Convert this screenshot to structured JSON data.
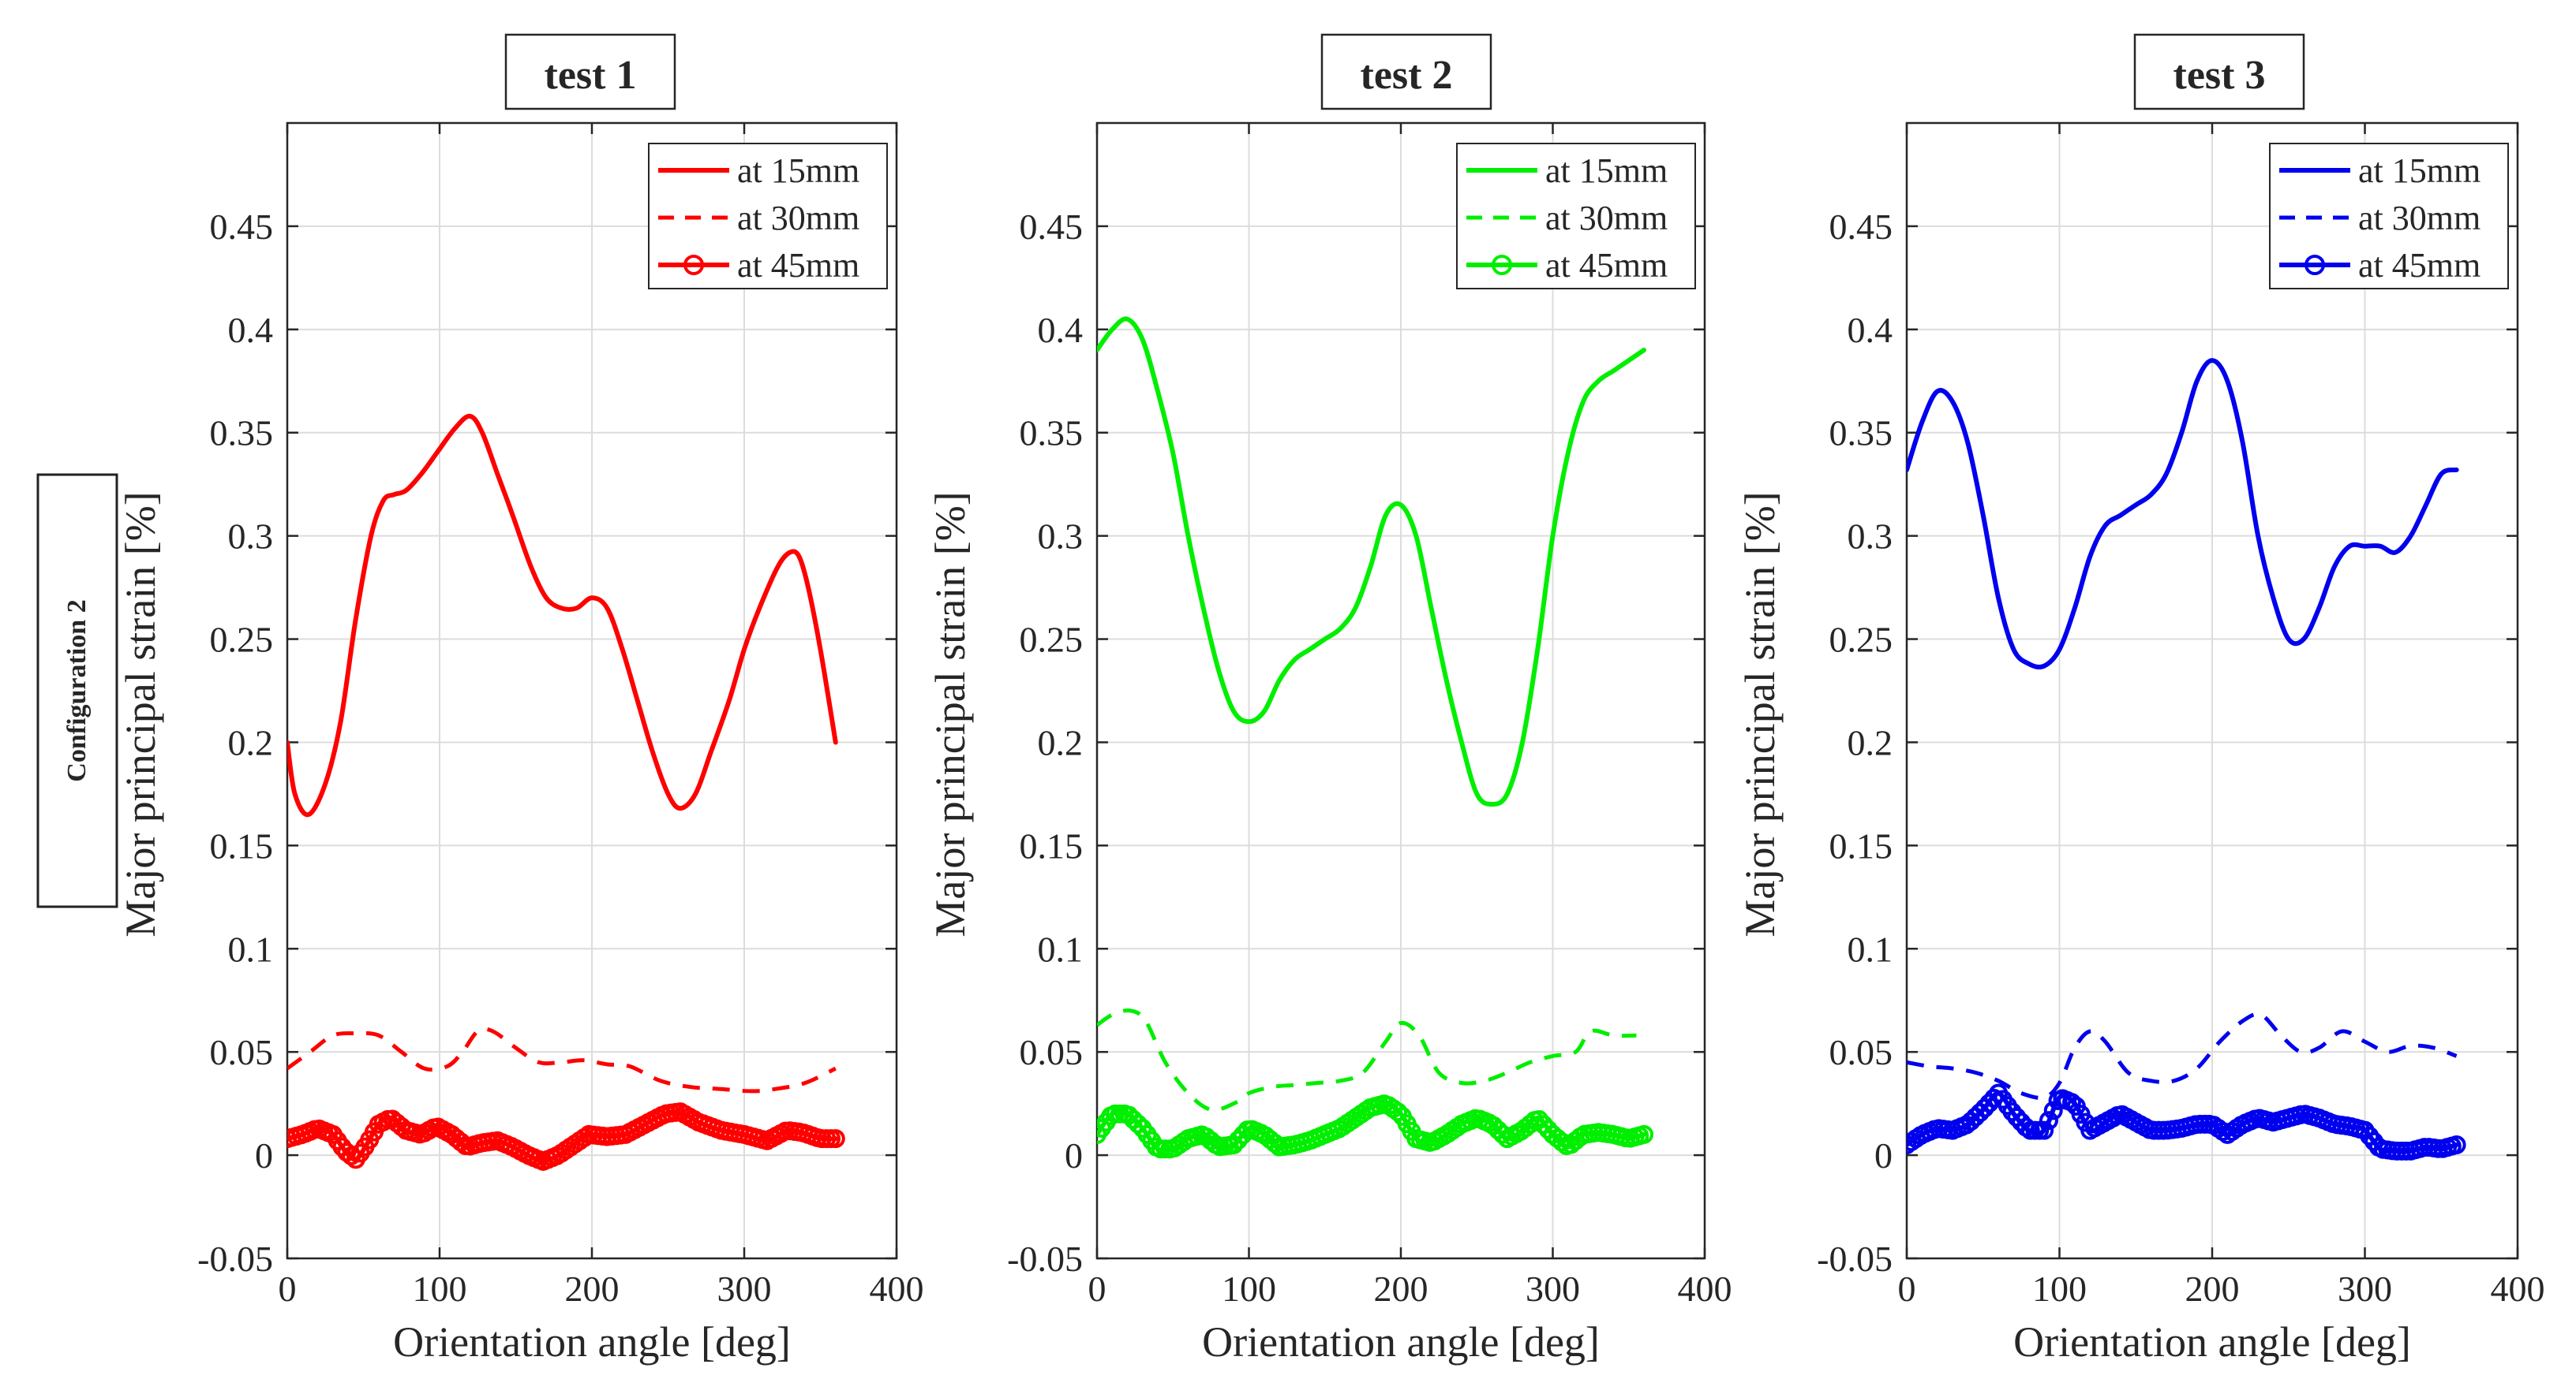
{
  "side_label": "Configuration 2",
  "chart_data": [
    {
      "type": "line",
      "title": "test 1",
      "xlabel": "Orientation angle [deg]",
      "ylabel": "Major principal strain [%]",
      "xlim": [
        0,
        400
      ],
      "ylim": [
        -0.05,
        0.5
      ],
      "xticks": [
        0,
        100,
        200,
        300,
        400
      ],
      "yticks": [
        -0.05,
        0,
        0.05,
        0.1,
        0.15,
        0.2,
        0.25,
        0.3,
        0.35,
        0.4,
        0.45
      ],
      "grid": true,
      "legend_position": "top-right",
      "color": "#ff0000",
      "series": [
        {
          "name": "at 15mm",
          "style": "solid",
          "x": [
            0,
            5,
            14,
            25,
            35,
            45,
            55,
            63,
            70,
            78,
            88,
            98,
            110,
            120,
            128,
            138,
            148,
            160,
            170,
            180,
            190,
            200,
            210,
            220,
            230,
            240,
            250,
            258,
            268,
            278,
            290,
            300,
            310,
            322,
            330,
            336,
            342,
            350,
            360
          ],
          "y": [
            0.2,
            0.175,
            0.165,
            0.18,
            0.21,
            0.26,
            0.3,
            0.317,
            0.32,
            0.322,
            0.33,
            0.34,
            0.352,
            0.358,
            0.35,
            0.33,
            0.31,
            0.285,
            0.27,
            0.265,
            0.265,
            0.27,
            0.265,
            0.245,
            0.22,
            0.195,
            0.175,
            0.168,
            0.175,
            0.195,
            0.22,
            0.245,
            0.265,
            0.285,
            0.292,
            0.29,
            0.275,
            0.245,
            0.2
          ]
        },
        {
          "name": "at 30mm",
          "style": "dashed",
          "x": [
            0,
            15,
            30,
            45,
            60,
            75,
            90,
            105,
            115,
            125,
            135,
            150,
            165,
            180,
            195,
            210,
            225,
            245,
            265,
            285,
            305,
            320,
            340,
            360
          ],
          "y": [
            0.042,
            0.05,
            0.058,
            0.059,
            0.058,
            0.05,
            0.042,
            0.043,
            0.05,
            0.06,
            0.06,
            0.052,
            0.045,
            0.045,
            0.046,
            0.044,
            0.043,
            0.036,
            0.033,
            0.032,
            0.031,
            0.032,
            0.035,
            0.042
          ]
        },
        {
          "name": "at 45mm",
          "style": "circles",
          "x": [
            0,
            10,
            20,
            30,
            38,
            45,
            52,
            60,
            68,
            78,
            88,
            98,
            108,
            118,
            128,
            138,
            148,
            158,
            168,
            178,
            188,
            198,
            210,
            222,
            235,
            248,
            258,
            270,
            285,
            300,
            315,
            328,
            338,
            350,
            360
          ],
          "y": [
            0.008,
            0.01,
            0.013,
            0.01,
            0.002,
            -0.002,
            0.005,
            0.015,
            0.018,
            0.012,
            0.01,
            0.014,
            0.01,
            0.004,
            0.006,
            0.007,
            0.004,
            0.0,
            -0.003,
            0.0,
            0.005,
            0.01,
            0.009,
            0.01,
            0.015,
            0.02,
            0.021,
            0.016,
            0.012,
            0.01,
            0.007,
            0.012,
            0.011,
            0.008,
            0.008
          ]
        }
      ]
    },
    {
      "type": "line",
      "title": "test 2",
      "xlabel": "Orientation angle [deg]",
      "ylabel": "Major principal strain [%]",
      "xlim": [
        0,
        400
      ],
      "ylim": [
        -0.05,
        0.5
      ],
      "xticks": [
        0,
        100,
        200,
        300,
        400
      ],
      "yticks": [
        -0.05,
        0,
        0.05,
        0.1,
        0.15,
        0.2,
        0.25,
        0.3,
        0.35,
        0.4,
        0.45
      ],
      "grid": true,
      "legend_position": "top-right",
      "color": "#00ee00",
      "series": [
        {
          "name": "at 15mm",
          "style": "solid",
          "x": [
            0,
            10,
            20,
            30,
            40,
            50,
            60,
            70,
            80,
            90,
            100,
            110,
            120,
            130,
            140,
            150,
            160,
            170,
            180,
            190,
            200,
            210,
            220,
            230,
            240,
            250,
            260,
            270,
            280,
            290,
            300,
            310,
            320,
            330,
            340,
            350,
            360
          ],
          "y": [
            0.39,
            0.4,
            0.405,
            0.395,
            0.37,
            0.34,
            0.3,
            0.265,
            0.235,
            0.215,
            0.21,
            0.215,
            0.23,
            0.24,
            0.245,
            0.25,
            0.255,
            0.265,
            0.285,
            0.31,
            0.315,
            0.3,
            0.265,
            0.23,
            0.2,
            0.175,
            0.17,
            0.175,
            0.2,
            0.245,
            0.3,
            0.34,
            0.365,
            0.375,
            0.38,
            0.385,
            0.39
          ]
        },
        {
          "name": "at 30mm",
          "style": "dashed",
          "x": [
            0,
            10,
            22,
            32,
            45,
            60,
            75,
            90,
            100,
            115,
            130,
            145,
            160,
            175,
            190,
            200,
            212,
            225,
            240,
            255,
            270,
            285,
            300,
            315,
            325,
            340,
            355
          ],
          "y": [
            0.063,
            0.068,
            0.07,
            0.065,
            0.045,
            0.03,
            0.022,
            0.025,
            0.03,
            0.033,
            0.034,
            0.035,
            0.036,
            0.04,
            0.055,
            0.064,
            0.058,
            0.04,
            0.035,
            0.036,
            0.04,
            0.045,
            0.048,
            0.05,
            0.06,
            0.058,
            0.058
          ]
        },
        {
          "name": "at 45mm",
          "style": "circles",
          "x": [
            0,
            10,
            20,
            30,
            40,
            50,
            60,
            70,
            80,
            90,
            100,
            110,
            120,
            130,
            140,
            150,
            160,
            170,
            180,
            190,
            200,
            210,
            220,
            230,
            240,
            250,
            260,
            270,
            280,
            290,
            300,
            310,
            320,
            330,
            340,
            350,
            360
          ],
          "y": [
            0.01,
            0.02,
            0.02,
            0.013,
            0.003,
            0.003,
            0.008,
            0.01,
            0.004,
            0.005,
            0.013,
            0.01,
            0.004,
            0.005,
            0.007,
            0.01,
            0.013,
            0.018,
            0.023,
            0.025,
            0.02,
            0.008,
            0.006,
            0.01,
            0.015,
            0.018,
            0.015,
            0.008,
            0.012,
            0.018,
            0.01,
            0.004,
            0.01,
            0.011,
            0.01,
            0.008,
            0.01
          ]
        }
      ]
    },
    {
      "type": "line",
      "title": "test 3",
      "xlabel": "Orientation angle [deg]",
      "ylabel": "Major principal strain [%]",
      "xlim": [
        0,
        400
      ],
      "ylim": [
        -0.05,
        0.5
      ],
      "xticks": [
        0,
        100,
        200,
        300,
        400
      ],
      "yticks": [
        -0.05,
        0,
        0.05,
        0.1,
        0.15,
        0.2,
        0.25,
        0.3,
        0.35,
        0.4,
        0.45
      ],
      "grid": true,
      "legend_position": "top-right",
      "color": "#0000ee",
      "series": [
        {
          "name": "at 15mm",
          "style": "solid",
          "x": [
            0,
            10,
            20,
            30,
            40,
            50,
            60,
            70,
            80,
            90,
            100,
            110,
            120,
            130,
            140,
            150,
            160,
            170,
            180,
            190,
            200,
            210,
            220,
            230,
            240,
            250,
            260,
            270,
            280,
            290,
            300,
            310,
            320,
            330,
            340,
            350,
            360
          ],
          "y": [
            0.332,
            0.355,
            0.37,
            0.365,
            0.345,
            0.31,
            0.27,
            0.245,
            0.238,
            0.237,
            0.245,
            0.265,
            0.29,
            0.305,
            0.31,
            0.315,
            0.32,
            0.33,
            0.35,
            0.375,
            0.385,
            0.375,
            0.345,
            0.3,
            0.27,
            0.25,
            0.25,
            0.265,
            0.285,
            0.295,
            0.295,
            0.295,
            0.292,
            0.3,
            0.315,
            0.33,
            0.332
          ]
        },
        {
          "name": "at 30mm",
          "style": "dashed",
          "x": [
            0,
            15,
            30,
            45,
            60,
            75,
            90,
            100,
            110,
            120,
            130,
            145,
            160,
            175,
            190,
            205,
            220,
            232,
            245,
            258,
            270,
            285,
            300,
            315,
            330,
            345,
            360
          ],
          "y": [
            0.045,
            0.043,
            0.042,
            0.04,
            0.036,
            0.03,
            0.028,
            0.035,
            0.052,
            0.06,
            0.055,
            0.04,
            0.036,
            0.036,
            0.042,
            0.055,
            0.065,
            0.068,
            0.058,
            0.05,
            0.052,
            0.06,
            0.055,
            0.05,
            0.053,
            0.052,
            0.048
          ]
        },
        {
          "name": "at 45mm",
          "style": "circles",
          "x": [
            0,
            10,
            20,
            30,
            40,
            50,
            60,
            70,
            80,
            90,
            100,
            110,
            120,
            130,
            140,
            150,
            160,
            170,
            180,
            190,
            200,
            210,
            220,
            230,
            240,
            250,
            260,
            270,
            280,
            290,
            300,
            310,
            320,
            330,
            340,
            350,
            360
          ],
          "y": [
            0.005,
            0.01,
            0.013,
            0.012,
            0.015,
            0.022,
            0.03,
            0.02,
            0.012,
            0.012,
            0.028,
            0.025,
            0.012,
            0.016,
            0.02,
            0.016,
            0.012,
            0.012,
            0.013,
            0.015,
            0.015,
            0.01,
            0.015,
            0.018,
            0.016,
            0.018,
            0.02,
            0.018,
            0.015,
            0.014,
            0.012,
            0.003,
            0.002,
            0.002,
            0.004,
            0.003,
            0.005
          ]
        }
      ]
    }
  ]
}
